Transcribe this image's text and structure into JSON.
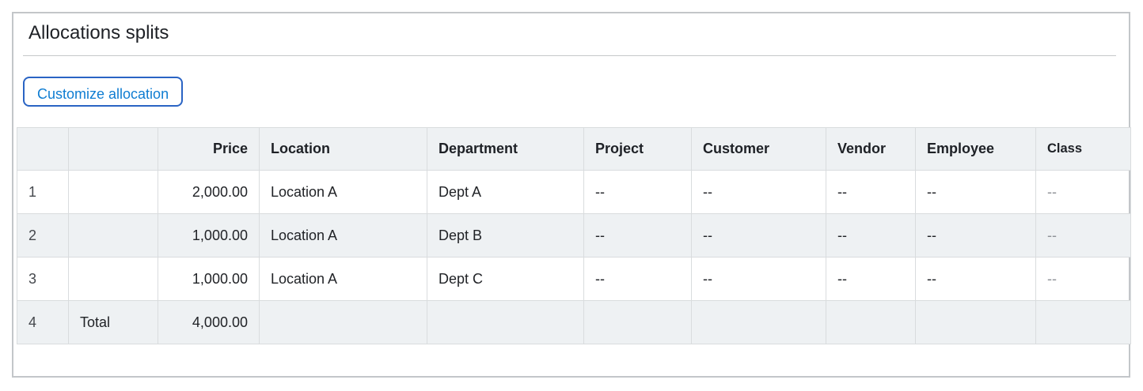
{
  "panel": {
    "title": "Allocations splits"
  },
  "toolbar": {
    "customize_button_label": "Customize allocation"
  },
  "table": {
    "columns": [
      {
        "key": "row_num",
        "label": ""
      },
      {
        "key": "label",
        "label": ""
      },
      {
        "key": "price",
        "label": "Price"
      },
      {
        "key": "location",
        "label": "Location"
      },
      {
        "key": "department",
        "label": "Department"
      },
      {
        "key": "project",
        "label": "Project"
      },
      {
        "key": "customer",
        "label": "Customer"
      },
      {
        "key": "vendor",
        "label": "Vendor"
      },
      {
        "key": "employee",
        "label": "Employee"
      },
      {
        "key": "class",
        "label": "Class"
      }
    ],
    "rows": [
      {
        "row_num": "1",
        "label": "",
        "price": "2,000.00",
        "location": "Location A",
        "department": "Dept A",
        "project": "--",
        "customer": "--",
        "vendor": "--",
        "employee": "--",
        "class": "--"
      },
      {
        "row_num": "2",
        "label": "",
        "price": "1,000.00",
        "location": "Location A",
        "department": "Dept B",
        "project": "--",
        "customer": "--",
        "vendor": "--",
        "employee": "--",
        "class": "--"
      },
      {
        "row_num": "3",
        "label": "",
        "price": "1,000.00",
        "location": "Location A",
        "department": "Dept C",
        "project": "--",
        "customer": "--",
        "vendor": "--",
        "employee": "--",
        "class": "--"
      },
      {
        "row_num": "4",
        "label": "Total",
        "price": "4,000.00",
        "location": "",
        "department": "",
        "project": "",
        "customer": "",
        "vendor": "",
        "employee": "",
        "class": ""
      }
    ]
  },
  "colors": {
    "accent_blue_text": "#0f7dd2",
    "accent_blue_border": "#2a64c4",
    "header_row_bg": "#eef1f3",
    "alt_row_bg": "#eef1f3",
    "cell_border": "#d9dcde",
    "panel_border": "#c3c6c9",
    "muted_dash": "#8f9297",
    "text": "#212327"
  }
}
